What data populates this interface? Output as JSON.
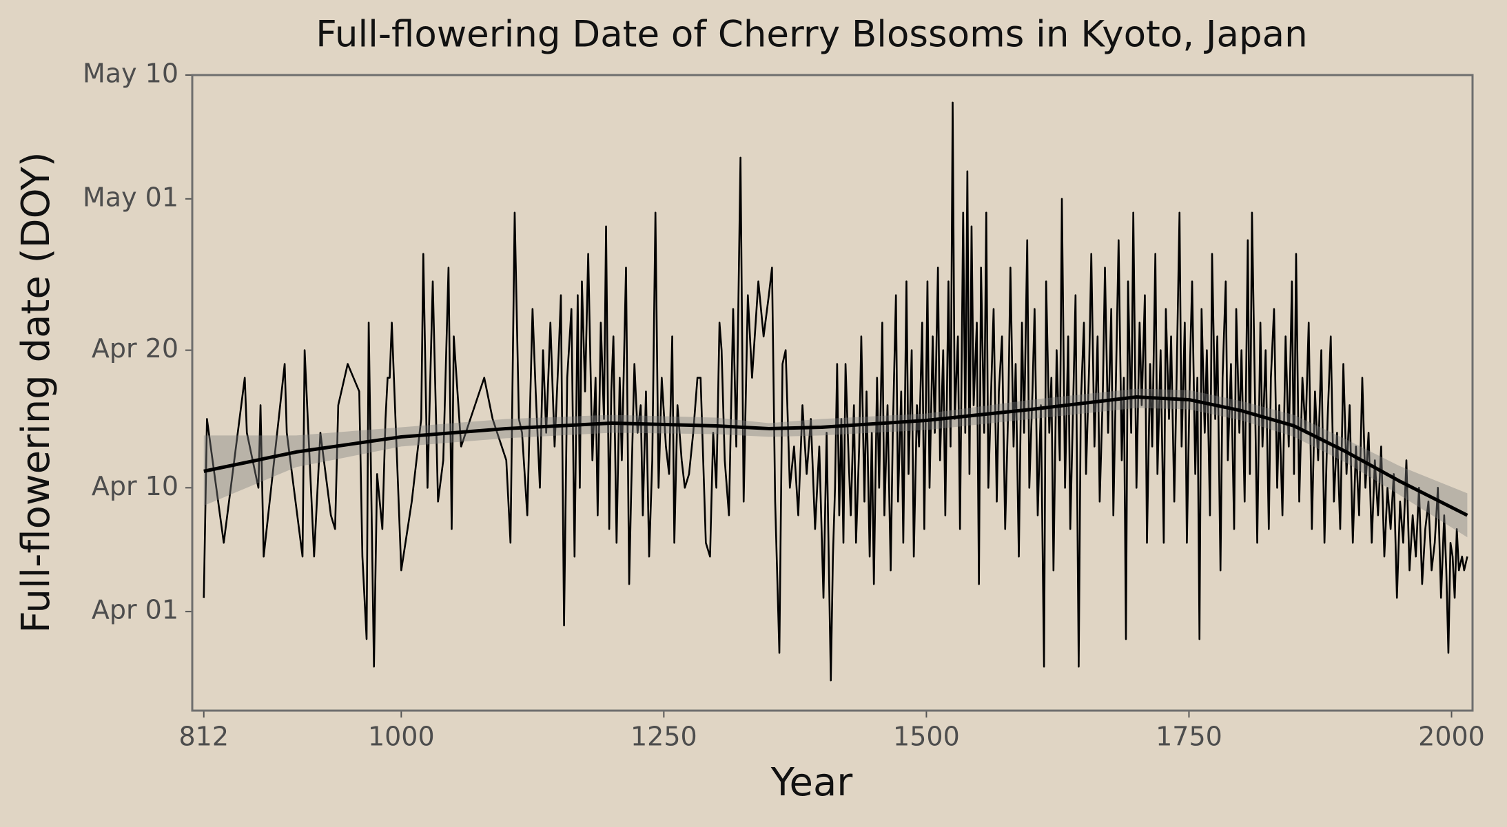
{
  "chart_data": {
    "type": "line",
    "title": "Full-flowering Date of Cherry Blossoms in Kyoto, Japan",
    "x_label": "Year",
    "y_label": "Full-flowering date (DOY)",
    "xlim": [
      801,
      2020
    ],
    "xticks": [
      812,
      1000,
      1250,
      1500,
      1750,
      2000
    ],
    "ylim": [
      83.8,
      130
    ],
    "yticks": [
      {
        "value": 91,
        "label": "Apr 01"
      },
      {
        "value": 100,
        "label": "Apr 10"
      },
      {
        "value": 110,
        "label": "Apr 20"
      },
      {
        "value": 121,
        "label": "May 01"
      },
      {
        "value": 130,
        "label": "May 10"
      }
    ],
    "background": "#e0d5c4",
    "series": [
      {
        "color": "#000000",
        "x": [
          812,
          815,
          831,
          851,
          853,
          864,
          866,
          869,
          889,
          891,
          906,
          908,
          917,
          923,
          933,
          937,
          940,
          949,
          960,
          963,
          967,
          969,
          972,
          974,
          977,
          982,
          985,
          987,
          989,
          991,
          1000,
          1010,
          1019,
          1021,
          1025,
          1030,
          1035,
          1040,
          1045,
          1048,
          1050,
          1057,
          1079,
          1087,
          1100,
          1104,
          1108,
          1112,
          1115,
          1120,
          1125,
          1128,
          1132,
          1135,
          1138,
          1142,
          1146,
          1150,
          1152,
          1155,
          1158,
          1162,
          1165,
          1168,
          1170,
          1172,
          1175,
          1178,
          1182,
          1185,
          1187,
          1190,
          1193,
          1195,
          1198,
          1200,
          1202,
          1205,
          1208,
          1210,
          1214,
          1217,
          1219,
          1222,
          1225,
          1228,
          1230,
          1233,
          1236,
          1239,
          1242,
          1245,
          1248,
          1252,
          1255,
          1258,
          1260,
          1263,
          1267,
          1270,
          1274,
          1278,
          1282,
          1285,
          1290,
          1294,
          1297,
          1300,
          1303,
          1305,
          1308,
          1312,
          1316,
          1319,
          1323,
          1326,
          1330,
          1334,
          1340,
          1345,
          1350,
          1353,
          1356,
          1360,
          1363,
          1366,
          1370,
          1374,
          1378,
          1382,
          1386,
          1390,
          1394,
          1398,
          1402,
          1405,
          1409,
          1411,
          1413,
          1415,
          1417,
          1419,
          1421,
          1423,
          1426,
          1428,
          1431,
          1433,
          1436,
          1438,
          1441,
          1443,
          1446,
          1448,
          1450,
          1453,
          1455,
          1458,
          1460,
          1463,
          1466,
          1468,
          1471,
          1473,
          1476,
          1478,
          1481,
          1483,
          1486,
          1488,
          1491,
          1493,
          1496,
          1498,
          1501,
          1503,
          1506,
          1508,
          1511,
          1513,
          1516,
          1518,
          1521,
          1523,
          1525,
          1527,
          1530,
          1532,
          1535,
          1537,
          1539,
          1541,
          1543,
          1545,
          1548,
          1550,
          1552,
          1555,
          1557,
          1559,
          1562,
          1564,
          1567,
          1569,
          1572,
          1575,
          1578,
          1580,
          1583,
          1585,
          1588,
          1591,
          1593,
          1596,
          1598,
          1601,
          1603,
          1606,
          1609,
          1612,
          1614,
          1617,
          1619,
          1621,
          1624,
          1627,
          1629,
          1632,
          1635,
          1637,
          1640,
          1642,
          1645,
          1647,
          1650,
          1652,
          1655,
          1657,
          1660,
          1663,
          1665,
          1668,
          1670,
          1673,
          1676,
          1678,
          1681,
          1683,
          1686,
          1688,
          1690,
          1692,
          1695,
          1697,
          1700,
          1703,
          1705,
          1708,
          1710,
          1713,
          1715,
          1718,
          1720,
          1723,
          1726,
          1728,
          1731,
          1733,
          1736,
          1738,
          1741,
          1743,
          1746,
          1748,
          1751,
          1753,
          1756,
          1758,
          1760,
          1762,
          1765,
          1767,
          1770,
          1772,
          1775,
          1777,
          1780,
          1782,
          1785,
          1787,
          1790,
          1793,
          1795,
          1798,
          1800,
          1803,
          1806,
          1808,
          1810,
          1813,
          1815,
          1818,
          1820,
          1823,
          1826,
          1828,
          1831,
          1834,
          1836,
          1839,
          1842,
          1845,
          1848,
          1850,
          1852,
          1855,
          1858,
          1861,
          1864,
          1867,
          1870,
          1873,
          1876,
          1879,
          1882,
          1885,
          1888,
          1891,
          1894,
          1897,
          1900,
          1903,
          1906,
          1909,
          1912,
          1915,
          1918,
          1921,
          1924,
          1927,
          1930,
          1933,
          1936,
          1939,
          1942,
          1945,
          1948,
          1951,
          1954,
          1957,
          1960,
          1963,
          1966,
          1969,
          1972,
          1975,
          1978,
          1981,
          1984,
          1987,
          1990,
          1993,
          1995,
          1997,
          1999,
          2001,
          2003,
          2005,
          2007,
          2010,
          2012,
          2015
        ],
        "values": [
          92,
          105,
          96,
          108,
          104,
          100,
          106,
          95,
          109,
          104,
          95,
          110,
          95,
          104,
          98,
          97,
          106,
          109,
          107,
          95,
          89,
          112,
          97,
          87,
          101,
          97,
          105,
          108,
          108,
          112,
          94,
          99,
          105,
          117,
          100,
          115,
          99,
          102,
          116,
          97,
          111,
          103,
          108,
          105,
          102,
          96,
          120,
          105,
          104,
          98,
          113,
          107,
          100,
          110,
          104,
          112,
          103,
          110,
          114,
          90,
          108,
          113,
          95,
          114,
          100,
          115,
          107,
          117,
          102,
          108,
          98,
          112,
          105,
          119,
          97,
          107,
          111,
          96,
          108,
          102,
          116,
          93,
          100,
          109,
          104,
          106,
          98,
          107,
          95,
          102,
          120,
          100,
          108,
          103,
          101,
          111,
          96,
          106,
          102,
          100,
          101,
          104,
          108,
          108,
          96,
          95,
          104,
          100,
          112,
          110,
          102,
          98,
          113,
          103,
          124,
          99,
          114,
          108,
          115,
          111,
          114,
          116,
          99,
          88,
          109,
          110,
          100,
          103,
          98,
          106,
          101,
          105,
          97,
          103,
          92,
          104,
          86,
          95,
          100,
          109,
          98,
          105,
          96,
          109,
          102,
          98,
          106,
          96,
          103,
          111,
          99,
          107,
          95,
          104,
          93,
          108,
          100,
          112,
          98,
          106,
          94,
          104,
          114,
          99,
          107,
          96,
          115,
          101,
          110,
          95,
          106,
          103,
          112,
          97,
          115,
          100,
          111,
          104,
          116,
          102,
          110,
          98,
          115,
          103,
          128,
          105,
          111,
          97,
          120,
          104,
          123,
          101,
          119,
          106,
          112,
          93,
          116,
          104,
          120,
          100,
          108,
          113,
          99,
          107,
          111,
          97,
          106,
          116,
          103,
          109,
          95,
          112,
          104,
          118,
          100,
          107,
          113,
          98,
          106,
          87,
          115,
          104,
          108,
          94,
          110,
          102,
          121,
          100,
          111,
          97,
          107,
          114,
          87,
          106,
          112,
          101,
          109,
          117,
          103,
          111,
          99,
          107,
          116,
          104,
          113,
          98,
          110,
          118,
          102,
          108,
          89,
          115,
          104,
          120,
          100,
          112,
          106,
          114,
          96,
          109,
          103,
          117,
          101,
          110,
          96,
          113,
          105,
          111,
          99,
          107,
          120,
          103,
          112,
          96,
          109,
          115,
          101,
          108,
          89,
          113,
          104,
          110,
          98,
          117,
          105,
          111,
          94,
          108,
          115,
          102,
          109,
          97,
          113,
          104,
          110,
          99,
          118,
          101,
          120,
          106,
          96,
          112,
          103,
          110,
          97,
          108,
          113,
          100,
          106,
          98,
          111,
          103,
          115,
          101,
          117,
          99,
          108,
          104,
          112,
          97,
          107,
          102,
          110,
          96,
          105,
          111,
          99,
          104,
          97,
          109,
          101,
          106,
          96,
          103,
          98,
          108,
          100,
          104,
          96,
          102,
          98,
          103,
          95,
          100,
          97,
          101,
          92,
          99,
          96,
          102,
          94,
          98,
          95,
          100,
          93,
          97,
          99,
          94,
          96,
          100,
          92,
          98,
          94,
          88,
          96,
          95,
          92,
          97,
          94,
          95,
          94,
          95
        ]
      },
      {
        "color": "#000000",
        "band_color": "#7f7f7f",
        "x": [
          812,
          900,
          1000,
          1100,
          1200,
          1300,
          1350,
          1400,
          1500,
          1600,
          1700,
          1750,
          1800,
          1850,
          1900,
          1950,
          2015
        ],
        "values": [
          101.2,
          102.6,
          103.7,
          104.3,
          104.7,
          104.5,
          104.3,
          104.4,
          104.9,
          105.7,
          106.6,
          106.4,
          105.6,
          104.5,
          102.6,
          100.5,
          98.0
        ],
        "lower": [
          98.7,
          101.5,
          103.0,
          103.6,
          104.0,
          103.9,
          103.7,
          103.8,
          104.2,
          105.0,
          105.8,
          105.7,
          104.9,
          103.7,
          101.8,
          99.5,
          96.4
        ],
        "upper": [
          103.8,
          103.8,
          104.4,
          105.0,
          105.3,
          105.1,
          104.7,
          105.0,
          105.4,
          106.4,
          107.2,
          107.1,
          106.3,
          105.3,
          103.5,
          101.6,
          99.6
        ]
      }
    ]
  }
}
